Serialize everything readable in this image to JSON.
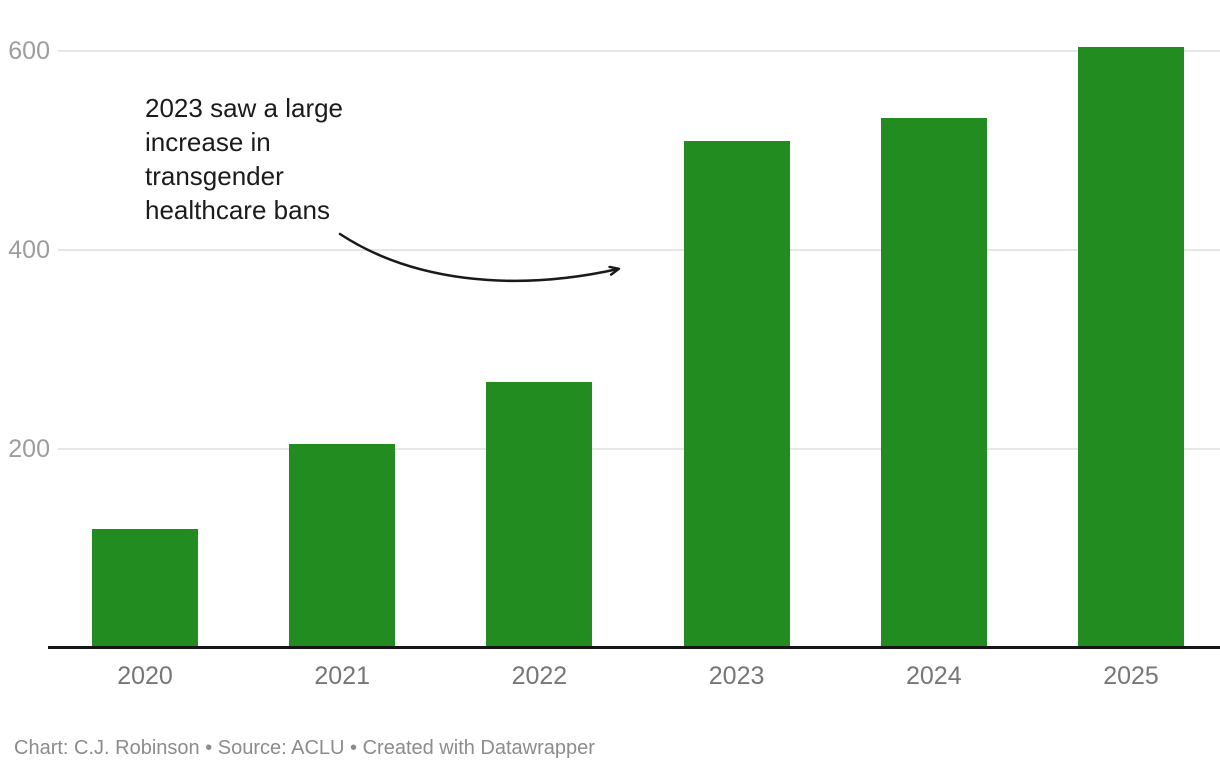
{
  "chart_data": {
    "type": "bar",
    "categories": [
      "2020",
      "2021",
      "2022",
      "2023",
      "2024",
      "2025"
    ],
    "values": [
      120,
      205,
      267,
      510,
      533,
      604
    ],
    "title": "",
    "xlabel": "",
    "ylabel": "",
    "ylim": [
      0,
      620
    ],
    "yticks": [
      200,
      400,
      600
    ],
    "grid": "horizontal",
    "legend": "none",
    "bar_color": "#238c21",
    "annotation": {
      "text": "2023 saw a large\nincrease in\ntransgender\nhealthcare bans",
      "arrow_points_to_category": "2023"
    }
  },
  "colors": {
    "bar": "#238c21",
    "gridline": "#e7e7e7",
    "axis_line": "#161616",
    "ytick_text": "#9d9d9d",
    "xtick_text": "#767676",
    "annotation_text": "#1b1b1b",
    "footer_text": "#8c8c8c",
    "background": "#ffffff"
  },
  "footer": {
    "text": "Chart: C.J. Robinson • Source: ACLU • Created with Datawrapper"
  }
}
